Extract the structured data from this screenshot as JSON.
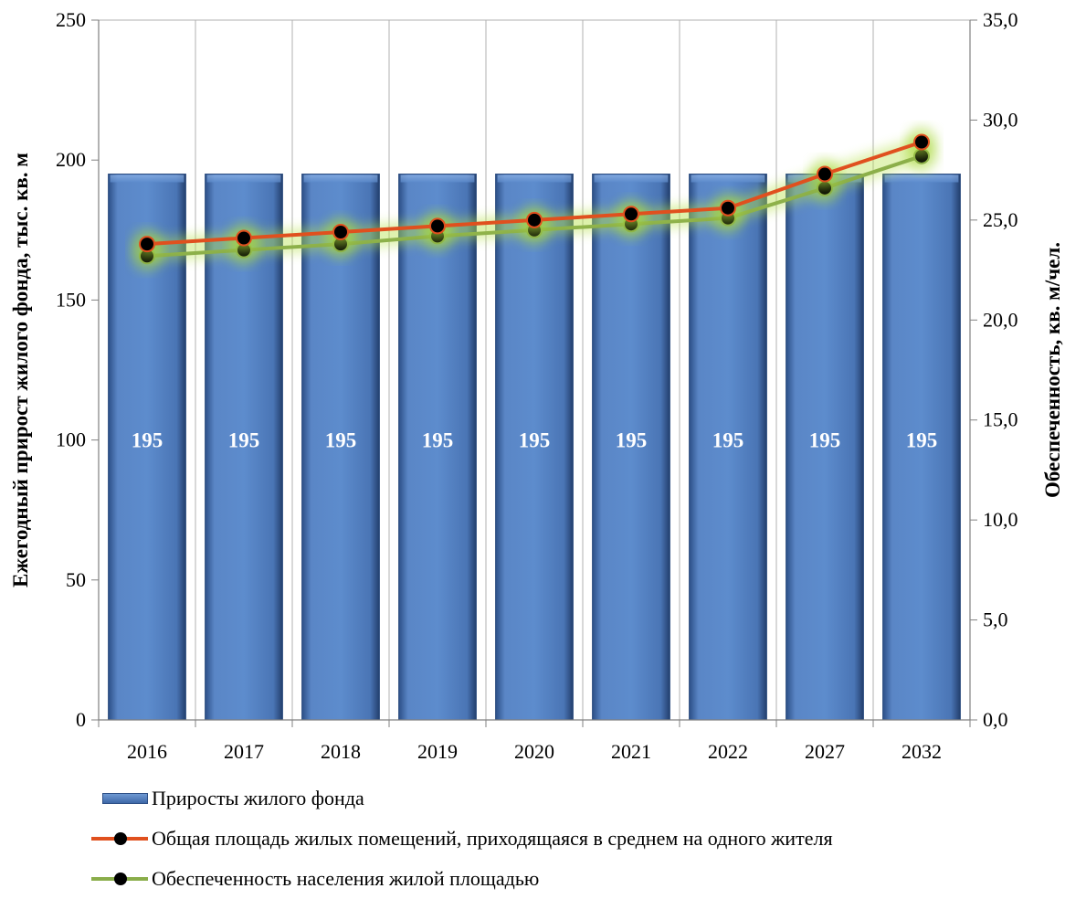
{
  "chart_data": {
    "type": "bar+line",
    "categories": [
      "2016",
      "2017",
      "2018",
      "2019",
      "2020",
      "2021",
      "2022",
      "2027",
      "2032"
    ],
    "bar_series": {
      "name": "Приросты жилого фонда",
      "values": [
        195,
        195,
        195,
        195,
        195,
        195,
        195,
        195,
        195
      ],
      "labels": [
        "195",
        "195",
        "195",
        "195",
        "195",
        "195",
        "195",
        "195",
        "195"
      ],
      "axis": "left",
      "color": "#4f81bd"
    },
    "line_series": [
      {
        "name": "Общая площадь жилых помещений, приходящаяся в среднем на одного жителя",
        "values": [
          23.8,
          24.1,
          24.4,
          24.7,
          25.0,
          25.3,
          25.6,
          27.3,
          28.9
        ],
        "axis": "right",
        "color": "#e0501e",
        "marker": "#000000"
      },
      {
        "name": "Обеспеченность населения жилой площадью",
        "values": [
          23.2,
          23.5,
          23.8,
          24.2,
          24.5,
          24.8,
          25.1,
          26.6,
          28.2
        ],
        "axis": "right",
        "color": "#8aad4a",
        "marker": "#000000"
      }
    ],
    "y_left": {
      "label": "Ежегодный прирост жилого фонда, тыс. кв. м",
      "ylim": [
        0,
        250
      ],
      "ticks": [
        "0",
        "50",
        "100",
        "150",
        "200",
        "250"
      ]
    },
    "y_right": {
      "label": "Обеспеченность, кв. м/чел.",
      "ylim": [
        0,
        35
      ],
      "ticks": [
        "0,0",
        "5,0",
        "10,0",
        "15,0",
        "20,0",
        "25,0",
        "30,0",
        "35,0"
      ]
    },
    "grid": "vertical",
    "legend_position": "bottom"
  }
}
